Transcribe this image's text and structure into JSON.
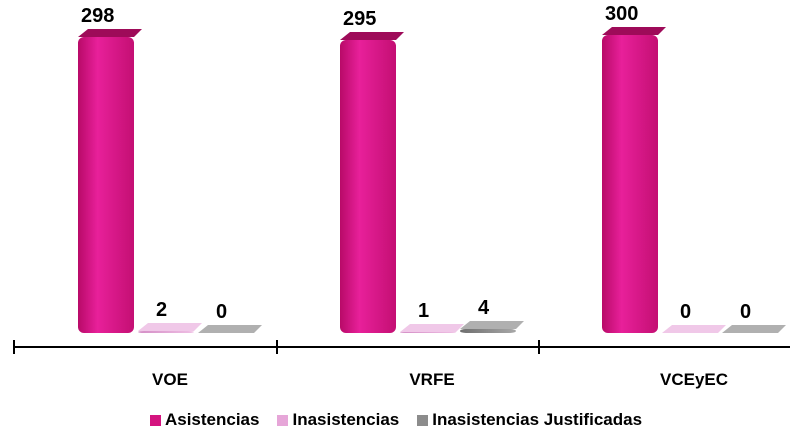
{
  "chart_data": {
    "type": "bar",
    "categories": [
      "VOE",
      "VRFE",
      "VCEyEC"
    ],
    "series": [
      {
        "name": "Asistencias",
        "values": [
          298,
          295,
          300
        ],
        "color": "#d4147f"
      },
      {
        "name": "Inasistencias",
        "values": [
          2,
          1,
          0
        ],
        "color": "#e6a6d8"
      },
      {
        "name": "Inasistencias Justificadas",
        "values": [
          0,
          4,
          0
        ],
        "color": "#8c8c8c"
      }
    ],
    "data_labels": true,
    "legend_position": "bottom",
    "grid": false
  }
}
